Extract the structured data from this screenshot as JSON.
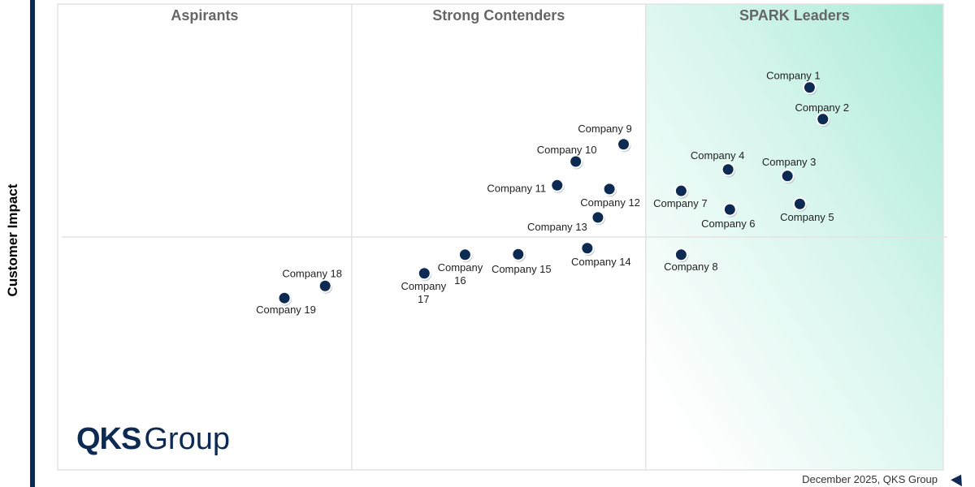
{
  "chart_data": {
    "type": "scatter",
    "ylabel": "Customer Impact",
    "xlabel": "",
    "xlim": [
      0,
      100
    ],
    "ylim": [
      0,
      100
    ],
    "grid": false,
    "quadrant_dividers": {
      "x": [
        33.2,
        66.4
      ],
      "y": 50
    },
    "quadrant_labels": [
      "Aspirants",
      "Strong Contenders",
      "SPARK Leaders"
    ],
    "highlight_color": "#a8ead6",
    "point_color": "#0d2a52",
    "points": [
      {
        "label": "Company 1",
        "x": 84.9,
        "y": 82.1
      },
      {
        "label": "Company 2",
        "x": 86.4,
        "y": 75.3
      },
      {
        "label": "Company 3",
        "x": 82.4,
        "y": 63.1
      },
      {
        "label": "Company 4",
        "x": 75.7,
        "y": 64.5
      },
      {
        "label": "Company 5",
        "x": 83.8,
        "y": 57.1
      },
      {
        "label": "Company 6",
        "x": 75.9,
        "y": 55.9
      },
      {
        "label": "Company 7",
        "x": 70.4,
        "y": 59.9
      },
      {
        "label": "Company 8",
        "x": 70.4,
        "y": 46.2
      },
      {
        "label": "Company 9",
        "x": 63.9,
        "y": 69.9
      },
      {
        "label": "Company 10",
        "x": 58.5,
        "y": 66.2
      },
      {
        "label": "Company 11",
        "x": 56.4,
        "y": 61.1
      },
      {
        "label": "Company 12",
        "x": 62.3,
        "y": 60.3
      },
      {
        "label": "Company 13",
        "x": 61.0,
        "y": 54.2
      },
      {
        "label": "Company 14",
        "x": 59.8,
        "y": 47.6
      },
      {
        "label": "Company 15",
        "x": 52.0,
        "y": 46.3
      },
      {
        "label": "Company 16",
        "x": 46.0,
        "y": 46.2
      },
      {
        "label": "Company 17",
        "x": 41.4,
        "y": 42.2
      },
      {
        "label": "Company 18",
        "x": 30.2,
        "y": 39.5
      },
      {
        "label": "Company 19",
        "x": 25.6,
        "y": 36.9
      }
    ]
  },
  "logo": {
    "bold": "QKS",
    "rest": "Group"
  },
  "footer": "December 2025, QKS Group"
}
